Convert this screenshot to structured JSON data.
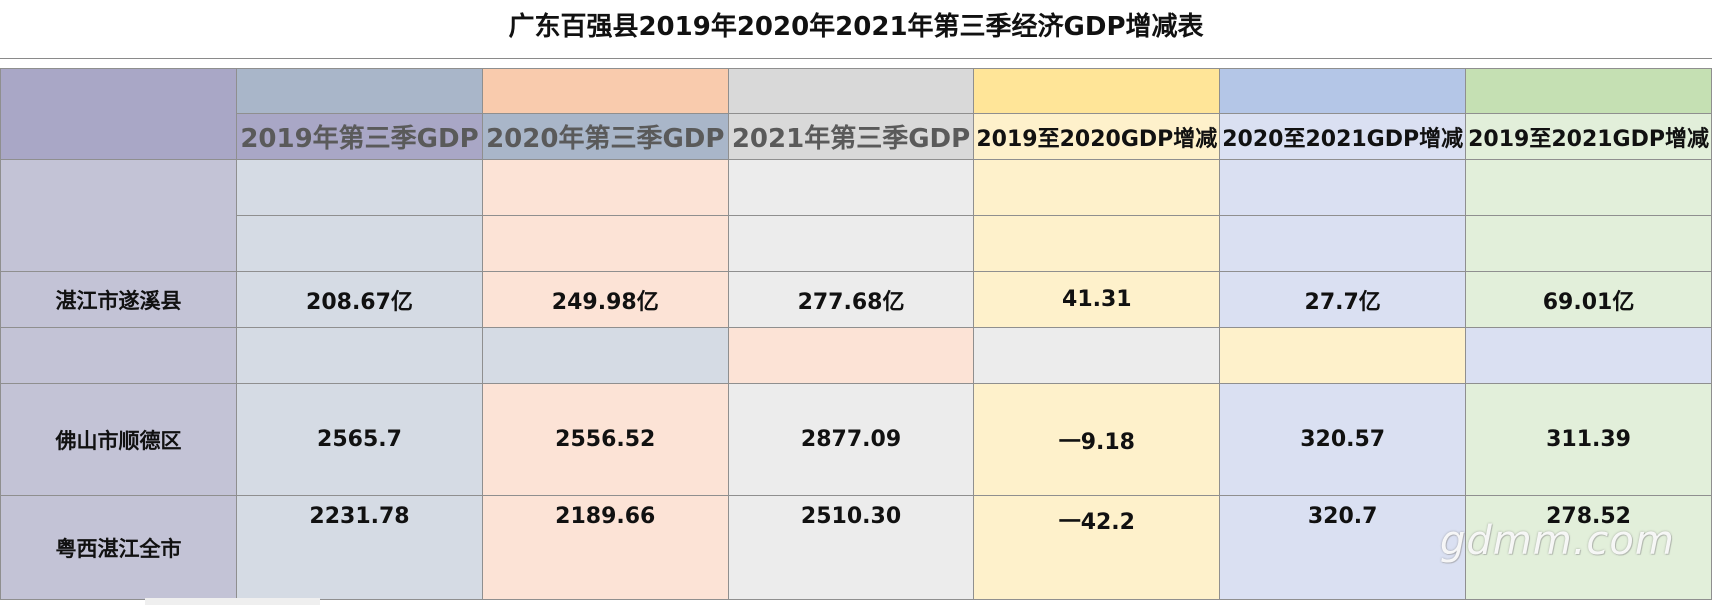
{
  "title": "广东百强县2019年2020年2021年第三季经济GDP增减表",
  "colors": {
    "label_col": "#c3c3d6",
    "label_header": "#a9a7c6",
    "c1": "#d5dbe4",
    "c1_top": "#a9b6c9",
    "c2": "#fce3d6",
    "c2_top": "#f9cbad",
    "c3": "#ececec",
    "c3_top": "#d9d9d9",
    "c4": "#fef1cb",
    "c4_top": "#ffe598",
    "c5": "#dae0f2",
    "c5_top": "#b4c6e7",
    "c6": "#e2efda",
    "c6_top": "#c5e0b3"
  },
  "headers": [
    "2019年第三季GDP",
    "2020年第三季GDP",
    "2021年第三季GDP",
    "2019至2020GDP增减",
    "2020至2021GDP增减",
    "2019至2021GDP增减"
  ],
  "rows": {
    "suixi": {
      "name": "湛江市遂溪县",
      "values": [
        "208.67亿",
        "249.98亿",
        "277.68亿",
        "41.31",
        "27.7亿",
        "69.01亿"
      ]
    },
    "shunde": {
      "name": "佛山市顺德区",
      "values": [
        "2565.7",
        "2556.52",
        "2877.09",
        "一9.18",
        "320.57",
        "311.39"
      ]
    },
    "zhanjiang": {
      "name": "粤西湛江全市",
      "values": [
        "2231.78",
        "2189.66",
        "2510.30",
        "一42.2",
        "320.7",
        "278.52"
      ]
    }
  },
  "watermark": "gdmm.com"
}
